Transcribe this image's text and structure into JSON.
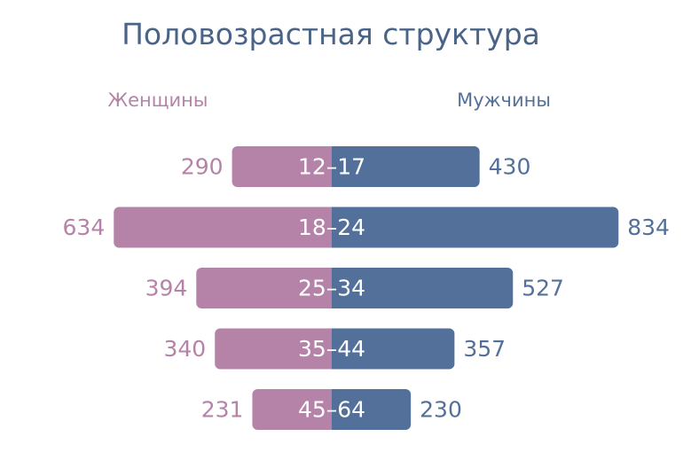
{
  "chart_data": {
    "type": "bar",
    "orientation": "horizontal-diverging",
    "title": "Половозрастная структура",
    "categories": [
      "12–17",
      "18–24",
      "25–34",
      "35–44",
      "45–64"
    ],
    "series": [
      {
        "name": "Женщины",
        "values": [
          290,
          634,
          394,
          340,
          231
        ],
        "color": "#b583a8",
        "side": "left"
      },
      {
        "name": "Мужчины",
        "values": [
          430,
          834,
          527,
          357,
          230
        ],
        "color": "#52709a",
        "side": "right"
      }
    ],
    "xlabel": "",
    "ylabel": "",
    "grid": false,
    "legend": "top"
  },
  "colors": {
    "title": "#4a6488",
    "female": "#b583a8",
    "male": "#52709a"
  }
}
